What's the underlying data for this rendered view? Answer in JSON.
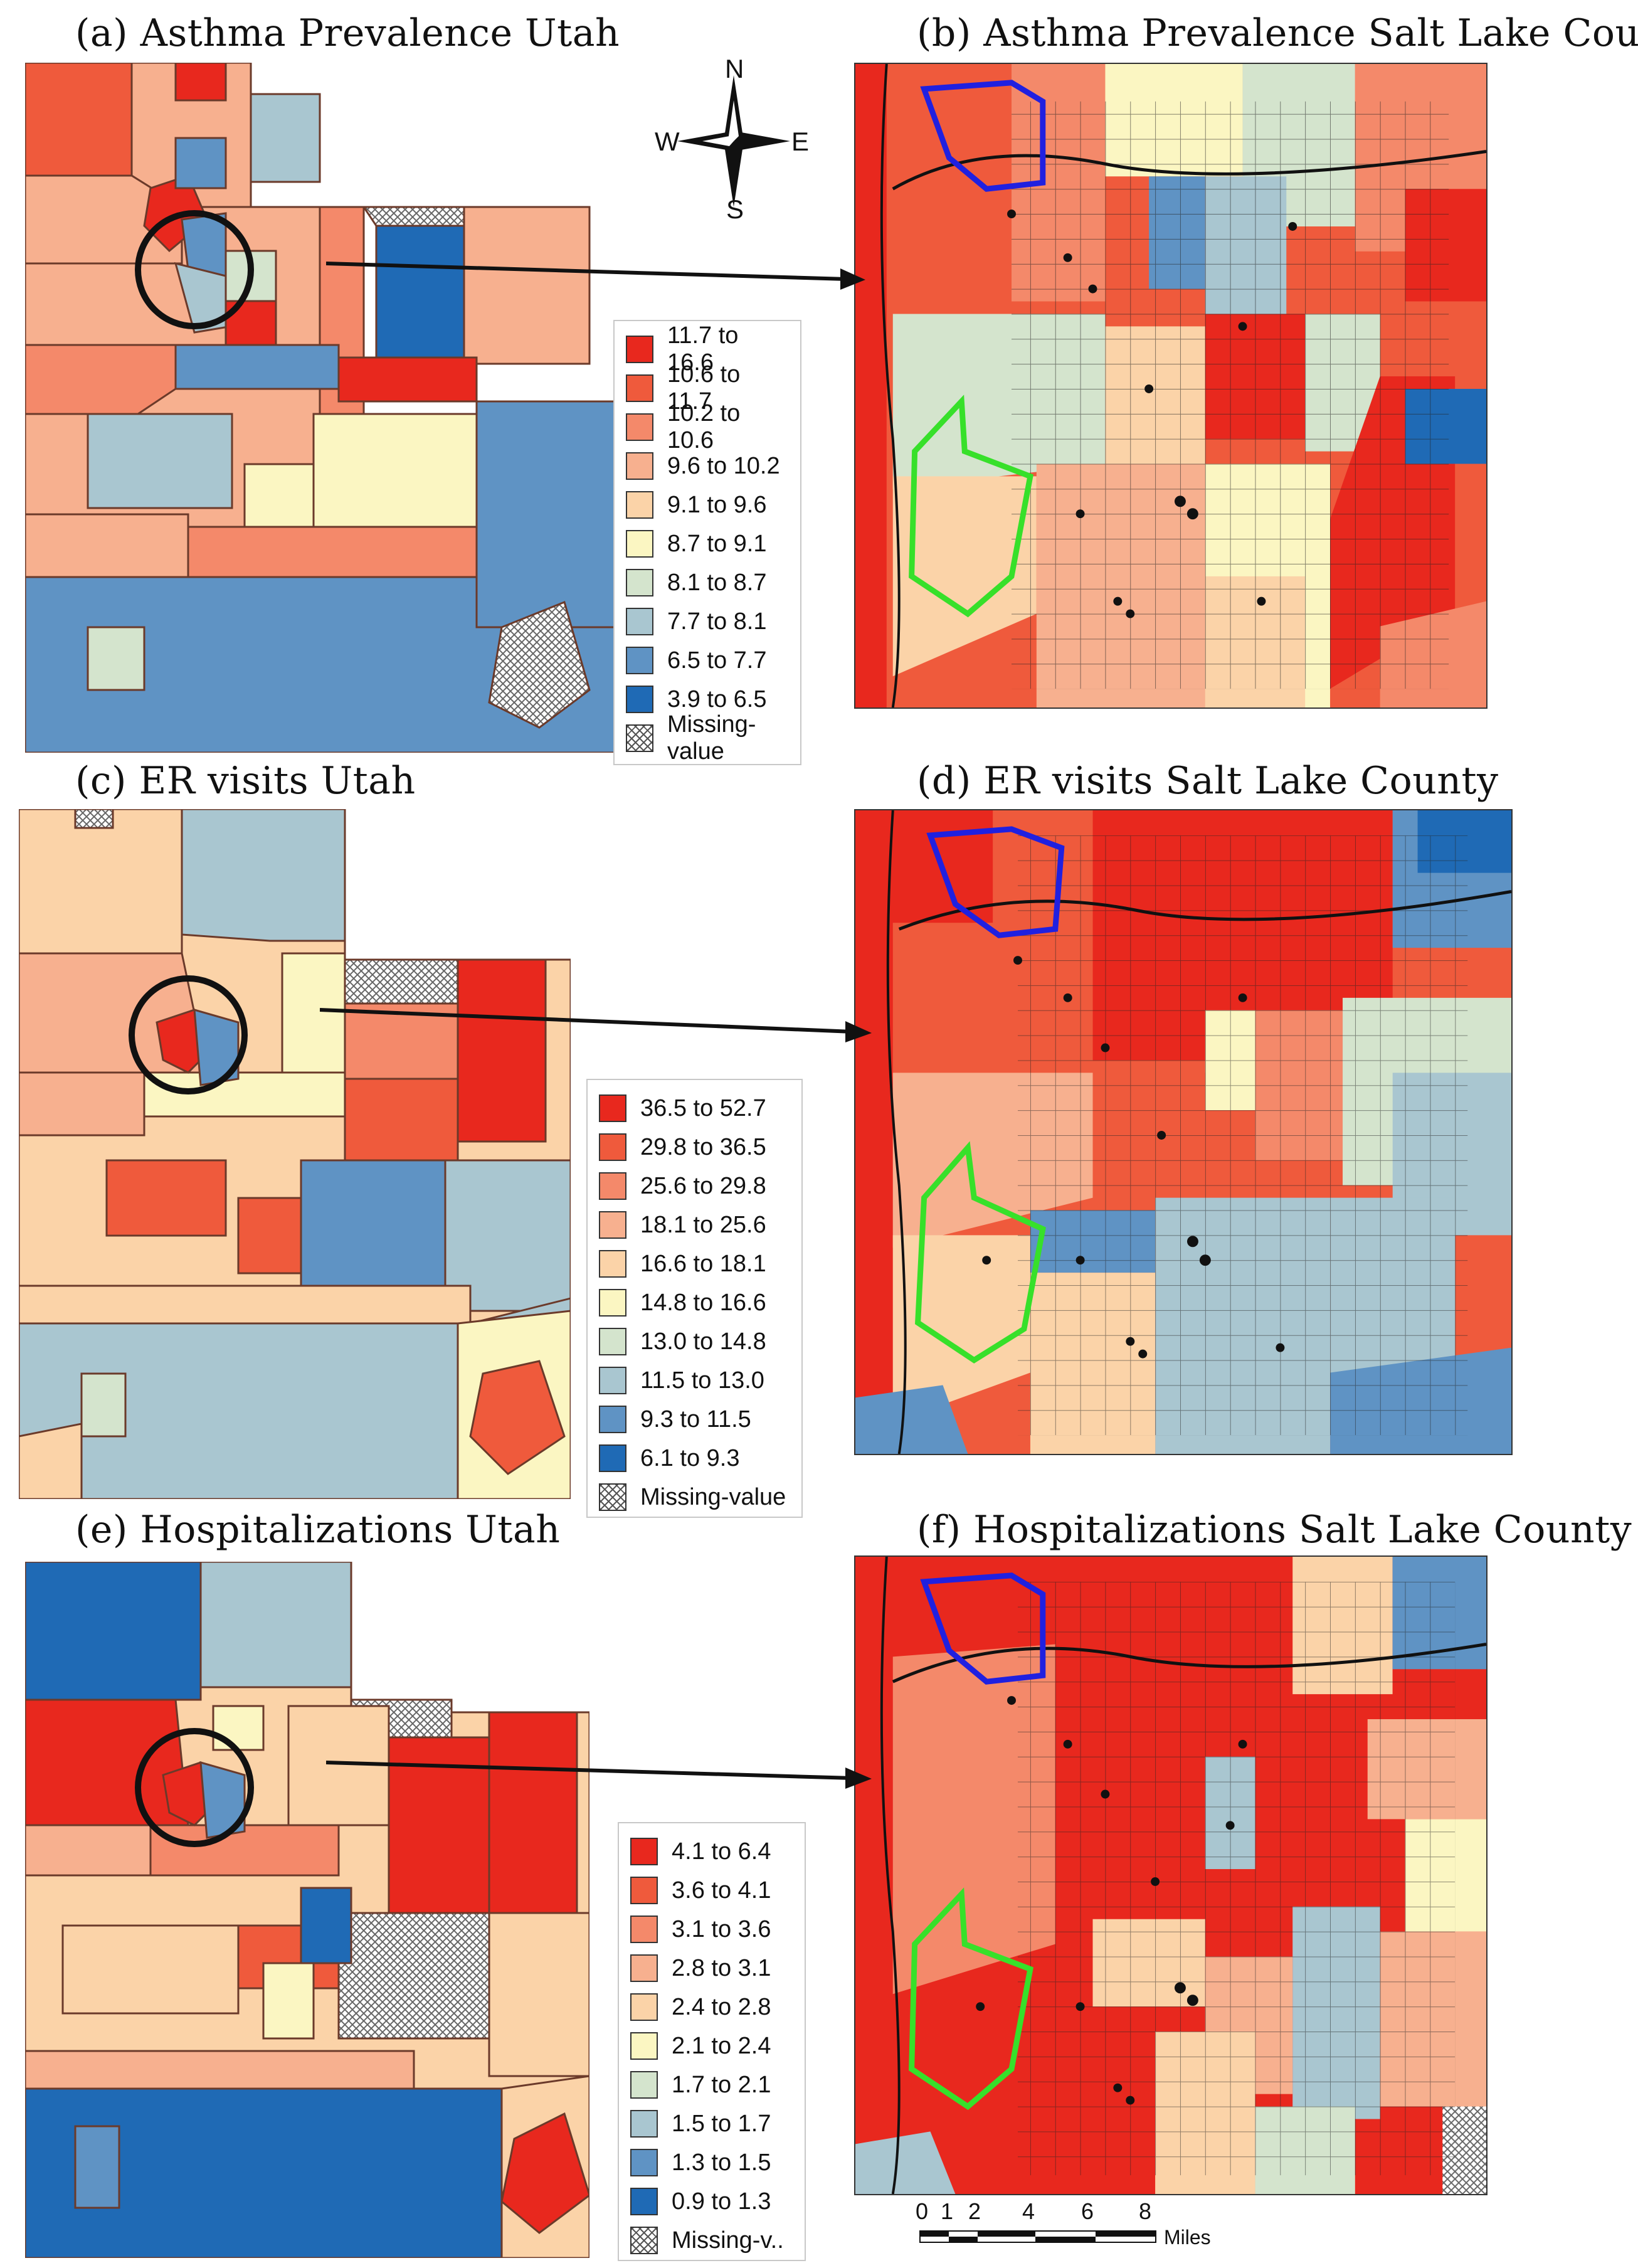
{
  "panels": {
    "a": "(a)  Asthma Prevalence Utah",
    "b": "(b)  Asthma Prevalence Salt Lake County",
    "c": "(c)  ER visits Utah",
    "d": "(d)  ER visits Salt Lake County",
    "e": "(e)  Hospitalizations Utah",
    "f": "(f)  Hospitalizations Salt Lake County"
  },
  "compass": {
    "n": "N",
    "s": "S",
    "e": "E",
    "w": "W"
  },
  "legend_colors": [
    "#e8281e",
    "#ef5a3c",
    "#f4896a",
    "#f7b08f",
    "#fbd3a8",
    "#fbf6c2",
    "#d4e4cd",
    "#a9c6d0",
    "#5f93c4",
    "#1f6ab5"
  ],
  "hatch_color": "#666666",
  "legends": {
    "asthma": {
      "items": [
        "11.7 to 16.6",
        "10.6 to 11.7",
        "10.2 to 10.6",
        "9.6 to 10.2",
        "9.1 to 9.6",
        "8.7 to 9.1",
        "8.1 to 8.7",
        "7.7 to 8.1",
        "6.5 to 7.7",
        "3.9 to 6.5"
      ],
      "missing": "Missing-value"
    },
    "er": {
      "items": [
        "36.5 to 52.7",
        "29.8 to 36.5",
        "25.6 to 29.8",
        "18.1 to 25.6",
        "16.6 to 18.1",
        "14.8 to 16.6",
        "13.0 to 14.8",
        "11.5 to 13.0",
        "9.3 to 11.5",
        "6.1 to 9.3"
      ],
      "missing": "Missing-value"
    },
    "hosp": {
      "items": [
        "4.1 to 6.4",
        "3.6 to 4.1",
        "3.1 to 3.6",
        "2.8 to 3.1",
        "2.4 to 2.8",
        "2.1 to 2.4",
        "1.7 to 2.1",
        "1.5 to 1.7",
        "1.3 to 1.5",
        "0.9 to 1.3"
      ],
      "missing": "Missing-v.."
    }
  },
  "scale": {
    "ticks": [
      "0",
      "1",
      "2",
      "4",
      "6",
      "8"
    ],
    "unit": "Miles"
  }
}
